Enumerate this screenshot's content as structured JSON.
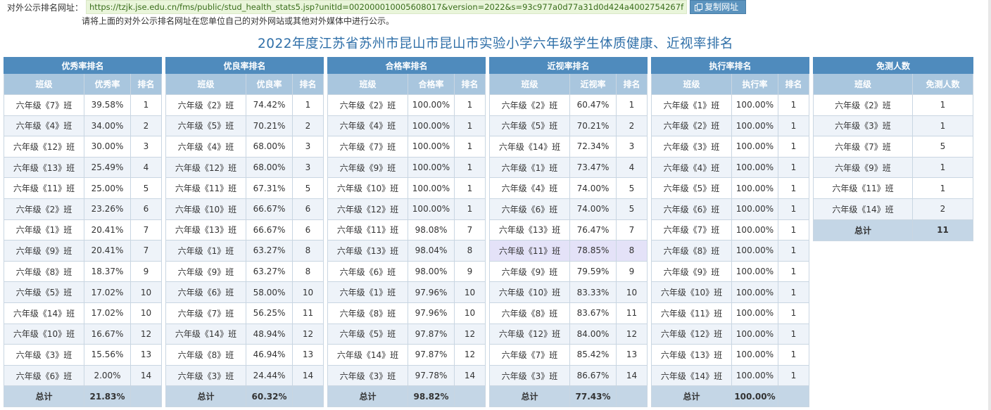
{
  "url_label": "对外公示排名网址：",
  "url": "https://tzjk.jse.edu.cn/fms/public/stud_health_stats5.jsp?unitId=002000010005608017&version=2022&s=93c977a0d77a31d0d424a4002754267f",
  "copy_button": "复制网址",
  "hint": "请将上面的对外公示排名网址在您单位自己的对外网站或其他对外媒体中进行公示。",
  "title": "2022年度江苏省苏州市昆山市昆山市实验小学六年级学生体质健康、近视率排名",
  "tables": [
    {
      "title": "优秀率排名",
      "headers": [
        "班级",
        "优秀率",
        "排名"
      ],
      "rows": [
        [
          "六年级《7》班",
          "39.58%",
          "1"
        ],
        [
          "六年级《4》班",
          "34.00%",
          "2"
        ],
        [
          "六年级《12》班",
          "30.00%",
          "3"
        ],
        [
          "六年级《13》班",
          "25.49%",
          "4"
        ],
        [
          "六年级《11》班",
          "25.00%",
          "5"
        ],
        [
          "六年级《2》班",
          "23.26%",
          "6"
        ],
        [
          "六年级《1》班",
          "20.41%",
          "7"
        ],
        [
          "六年级《9》班",
          "20.41%",
          "7"
        ],
        [
          "六年级《8》班",
          "18.37%",
          "9"
        ],
        [
          "六年级《5》班",
          "17.02%",
          "10"
        ],
        [
          "六年级《14》班",
          "17.02%",
          "10"
        ],
        [
          "六年级《10》班",
          "16.67%",
          "12"
        ],
        [
          "六年级《3》班",
          "15.56%",
          "13"
        ],
        [
          "六年级《6》班",
          "2.00%",
          "14"
        ]
      ],
      "total": [
        "总计",
        "21.83%",
        ""
      ]
    },
    {
      "title": "优良率排名",
      "headers": [
        "班级",
        "优良率",
        "排名"
      ],
      "rows": [
        [
          "六年级《2》班",
          "74.42%",
          "1"
        ],
        [
          "六年级《5》班",
          "70.21%",
          "2"
        ],
        [
          "六年级《4》班",
          "68.00%",
          "3"
        ],
        [
          "六年级《12》班",
          "68.00%",
          "3"
        ],
        [
          "六年级《11》班",
          "67.31%",
          "5"
        ],
        [
          "六年级《10》班",
          "66.67%",
          "6"
        ],
        [
          "六年级《13》班",
          "66.67%",
          "6"
        ],
        [
          "六年级《1》班",
          "63.27%",
          "8"
        ],
        [
          "六年级《9》班",
          "63.27%",
          "8"
        ],
        [
          "六年级《6》班",
          "58.00%",
          "10"
        ],
        [
          "六年级《7》班",
          "56.25%",
          "11"
        ],
        [
          "六年级《14》班",
          "48.94%",
          "12"
        ],
        [
          "六年级《8》班",
          "46.94%",
          "13"
        ],
        [
          "六年级《3》班",
          "24.44%",
          "14"
        ]
      ],
      "total": [
        "总计",
        "60.32%",
        ""
      ]
    },
    {
      "title": "合格率排名",
      "headers": [
        "班级",
        "合格率",
        "排名"
      ],
      "rows": [
        [
          "六年级《2》班",
          "100.00%",
          "1"
        ],
        [
          "六年级《4》班",
          "100.00%",
          "1"
        ],
        [
          "六年级《7》班",
          "100.00%",
          "1"
        ],
        [
          "六年级《9》班",
          "100.00%",
          "1"
        ],
        [
          "六年级《10》班",
          "100.00%",
          "1"
        ],
        [
          "六年级《12》班",
          "100.00%",
          "1"
        ],
        [
          "六年级《11》班",
          "98.08%",
          "7"
        ],
        [
          "六年级《13》班",
          "98.04%",
          "8"
        ],
        [
          "六年级《6》班",
          "98.00%",
          "9"
        ],
        [
          "六年级《1》班",
          "97.96%",
          "10"
        ],
        [
          "六年级《8》班",
          "97.96%",
          "10"
        ],
        [
          "六年级《5》班",
          "97.87%",
          "12"
        ],
        [
          "六年级《14》班",
          "97.87%",
          "12"
        ],
        [
          "六年级《3》班",
          "97.78%",
          "14"
        ]
      ],
      "total": [
        "总计",
        "98.82%",
        ""
      ]
    },
    {
      "title": "近视率排名",
      "headers": [
        "班级",
        "近视率",
        "排名"
      ],
      "rows": [
        [
          "六年级《2》班",
          "60.47%",
          "1"
        ],
        [
          "六年级《5》班",
          "70.21%",
          "2"
        ],
        [
          "六年级《14》班",
          "72.34%",
          "3"
        ],
        [
          "六年级《1》班",
          "73.47%",
          "4"
        ],
        [
          "六年级《4》班",
          "74.00%",
          "5"
        ],
        [
          "六年级《6》班",
          "74.00%",
          "5"
        ],
        [
          "六年级《13》班",
          "76.47%",
          "7"
        ],
        [
          "六年级《11》班",
          "78.85%",
          "8"
        ],
        [
          "六年级《9》班",
          "79.59%",
          "9"
        ],
        [
          "六年级《10》班",
          "83.33%",
          "10"
        ],
        [
          "六年级《8》班",
          "83.67%",
          "11"
        ],
        [
          "六年级《12》班",
          "84.00%",
          "12"
        ],
        [
          "六年级《7》班",
          "85.42%",
          "13"
        ],
        [
          "六年级《3》班",
          "86.67%",
          "14"
        ]
      ],
      "total": [
        "总计",
        "77.43%",
        ""
      ],
      "highlight_row": 7
    },
    {
      "title": "执行率排名",
      "headers": [
        "班级",
        "执行率",
        "排名"
      ],
      "rows": [
        [
          "六年级《1》班",
          "100.00%",
          "1"
        ],
        [
          "六年级《2》班",
          "100.00%",
          "1"
        ],
        [
          "六年级《3》班",
          "100.00%",
          "1"
        ],
        [
          "六年级《4》班",
          "100.00%",
          "1"
        ],
        [
          "六年级《5》班",
          "100.00%",
          "1"
        ],
        [
          "六年级《6》班",
          "100.00%",
          "1"
        ],
        [
          "六年级《7》班",
          "100.00%",
          "1"
        ],
        [
          "六年级《8》班",
          "100.00%",
          "1"
        ],
        [
          "六年级《9》班",
          "100.00%",
          "1"
        ],
        [
          "六年级《10》班",
          "100.00%",
          "1"
        ],
        [
          "六年级《11》班",
          "100.00%",
          "1"
        ],
        [
          "六年级《12》班",
          "100.00%",
          "1"
        ],
        [
          "六年级《13》班",
          "100.00%",
          "1"
        ],
        [
          "六年级《14》班",
          "100.00%",
          "1"
        ]
      ],
      "total": [
        "总计",
        "100.00%",
        ""
      ]
    }
  ],
  "exempt": {
    "title": "免测人数",
    "headers": [
      "班级",
      "免测人数"
    ],
    "rows": [
      [
        "六年级《2》班",
        "1"
      ],
      [
        "六年级《3》班",
        "1"
      ],
      [
        "六年级《7》班",
        "5"
      ],
      [
        "六年级《9》班",
        "1"
      ],
      [
        "六年级《11》班",
        "1"
      ],
      [
        "六年级《14》班",
        "2"
      ]
    ],
    "total": [
      "总计",
      "11"
    ]
  }
}
